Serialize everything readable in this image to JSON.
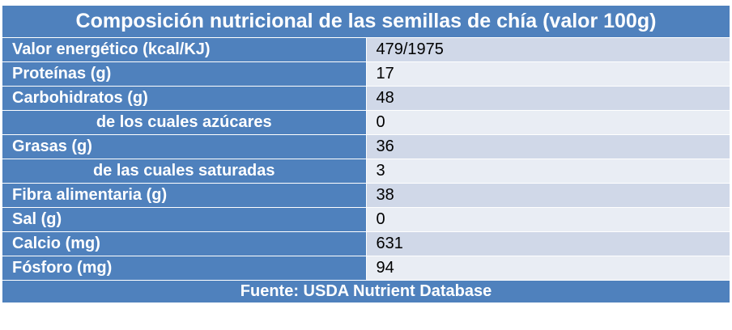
{
  "table": {
    "title": "Composición nutricional de las semillas de chía (valor 100g)",
    "rows": [
      {
        "label": "Valor energético (kcal/KJ)",
        "value": "479/1975",
        "indent": false
      },
      {
        "label": "Proteínas (g)",
        "value": "17",
        "indent": false
      },
      {
        "label": "Carbohidratos (g)",
        "value": "48",
        "indent": false
      },
      {
        "label": "de los cuales azúcares",
        "value": "0",
        "indent": true
      },
      {
        "label": "Grasas (g)",
        "value": "36",
        "indent": false
      },
      {
        "label": "de las cuales saturadas",
        "value": "3",
        "indent": true
      },
      {
        "label": "Fibra alimentaria (g)",
        "value": "38",
        "indent": false
      },
      {
        "label": "Sal (g)",
        "value": "0",
        "indent": false
      },
      {
        "label": "Calcio (mg)",
        "value": "631",
        "indent": false
      },
      {
        "label": "Fósforo (mg)",
        "value": "94",
        "indent": false
      }
    ],
    "footer": "Fuente: USDA Nutrient Database"
  },
  "colors": {
    "header_blue": "#4f81bd",
    "row_light": "#d0d8e8",
    "row_lighter": "#e9edf4"
  }
}
